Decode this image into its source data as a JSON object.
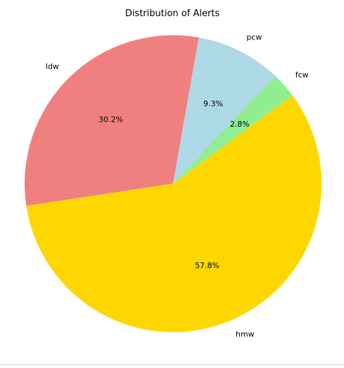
{
  "chart_data": {
    "type": "pie",
    "title": "Distribution of Alerts",
    "categories": [
      "ldw",
      "hmw",
      "fcw",
      "pcw"
    ],
    "values": [
      30.2,
      57.8,
      2.8,
      9.3
    ],
    "value_labels": [
      "30.2%",
      "57.8%",
      "2.8%",
      "9.3%"
    ],
    "colors": [
      "#f08080",
      "#ffd700",
      "#90ee90",
      "#add8e6"
    ],
    "start_angle_deg": 80,
    "direction": "counterclockwise",
    "legend": "none"
  }
}
